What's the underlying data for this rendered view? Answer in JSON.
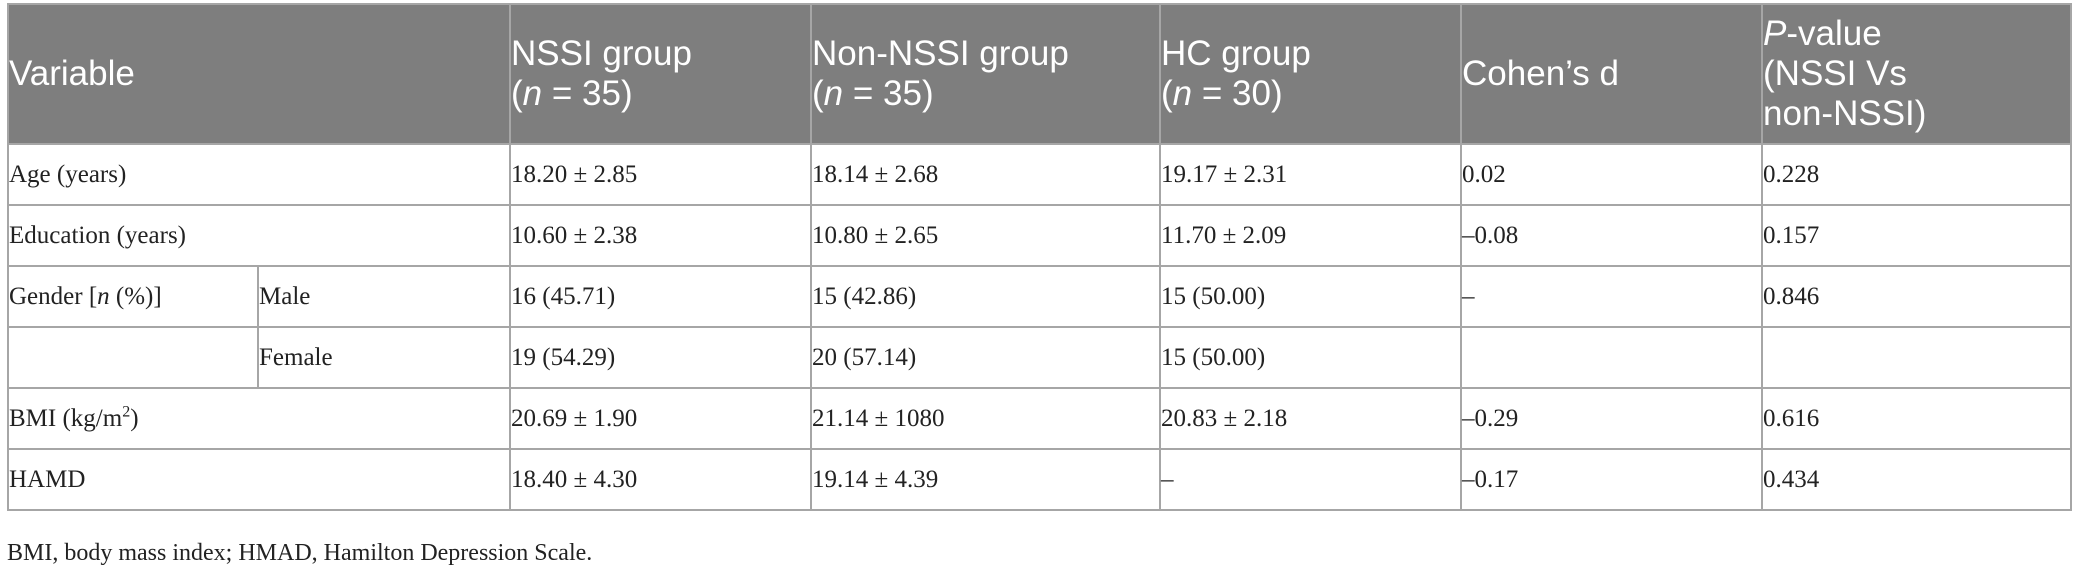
{
  "table": {
    "headers": {
      "variable": "Variable",
      "nssi_label": "NSSI group",
      "nssi_n": "n",
      "nssi_count": " = 35)",
      "non_nssi_label": "Non-NSSI group",
      "non_nssi_n": "n",
      "non_nssi_count": " = 35)",
      "hc_label": "HC group",
      "hc_n": "n",
      "hc_count": " = 30)",
      "cohens_d": "Cohen’s d",
      "p_letter": "P",
      "p_rest": "-value",
      "p_line2": "(NSSI Vs",
      "p_line3": "non-NSSI)"
    },
    "rows": {
      "age": {
        "label": "Age (years)",
        "nssi": "18.20 ± 2.85",
        "non_nssi": "18.14 ± 2.68",
        "hc": "19.17 ± 2.31",
        "d": "0.02",
        "p": "0.228"
      },
      "education": {
        "label": "Education (years)",
        "nssi": "10.60 ± 2.38",
        "non_nssi": "10.80 ± 2.65",
        "hc": "11.70 ± 2.09",
        "d": "–0.08",
        "p": "0.157"
      },
      "gender": {
        "label_a": "Gender [",
        "label_n": "n",
        "label_b": " (%)]",
        "male": {
          "label": "Male",
          "nssi": "16 (45.71)",
          "non_nssi": "15 (42.86)",
          "hc": "15 (50.00)",
          "d": "–",
          "p": "0.846"
        },
        "female": {
          "label": "Female",
          "nssi": "19 (54.29)",
          "non_nssi": "20 (57.14)",
          "hc": "15 (50.00)",
          "d": "",
          "p": ""
        }
      },
      "bmi": {
        "label": "BMI (kg/m",
        "label_sup": "2",
        "label_end": ")",
        "nssi": "20.69 ± 1.90",
        "non_nssi": "21.14 ± 1080",
        "hc": "20.83 ± 2.18",
        "d": "–0.29",
        "p": "0.616"
      },
      "hamd": {
        "label": "HAMD",
        "nssi": "18.40 ± 4.30",
        "non_nssi": "19.14 ± 4.39",
        "hc": "–",
        "d": "–0.17",
        "p": "0.434"
      }
    }
  },
  "footnote": "BMI, body mass index; HMAD, Hamilton Depression Scale."
}
